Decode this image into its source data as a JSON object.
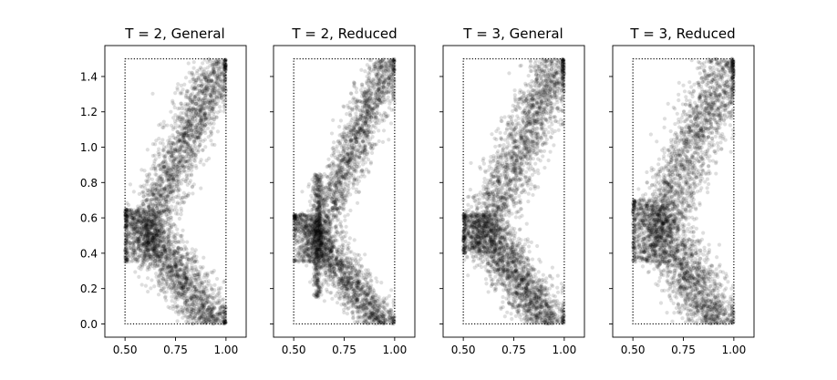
{
  "figure": {
    "background": "#ffffff",
    "point_color": "#000000",
    "point_alpha": 0.13,
    "bound_box_style": "dotted"
  },
  "chart_data": [
    {
      "type": "scatter",
      "title": "T = 2, General",
      "xlim": [
        0.4,
        1.1
      ],
      "ylim": [
        -0.075,
        1.575
      ],
      "xticks": [
        0.5,
        0.75,
        1.0
      ],
      "xtick_labels": [
        "0.50",
        "0.75",
        "1.00"
      ],
      "yticks": [
        0.0,
        0.2,
        0.4,
        0.6,
        0.8,
        1.0,
        1.2,
        1.4
      ],
      "ytick_labels": [
        "0.0",
        "0.2",
        "0.4",
        "0.6",
        "0.8",
        "1.0",
        "1.2",
        "1.4"
      ],
      "show_y_tick_labels": true,
      "bounds": {
        "x": [
          0.5,
          1.0
        ],
        "y": [
          0.0,
          1.5
        ]
      },
      "bands": [
        {
          "n": 1900,
          "y0": 0.0,
          "y1": 0.65,
          "x0": 0.93,
          "x1": 0.54,
          "width": 0.07
        },
        {
          "n": 2100,
          "y0": 0.35,
          "y1": 1.5,
          "x0": 0.54,
          "x1": 0.98,
          "width": 0.06
        }
      ],
      "approximate": true
    },
    {
      "type": "scatter",
      "title": "T = 2, Reduced",
      "xlim": [
        0.4,
        1.1
      ],
      "ylim": [
        -0.075,
        1.575
      ],
      "xticks": [
        0.5,
        0.75,
        1.0
      ],
      "xtick_labels": [
        "0.50",
        "0.75",
        "1.00"
      ],
      "yticks": [
        0.0,
        0.2,
        0.4,
        0.6,
        0.8,
        1.0,
        1.2,
        1.4
      ],
      "ytick_labels": [
        "0.0",
        "0.2",
        "0.4",
        "0.6",
        "0.8",
        "1.0",
        "1.2",
        "1.4"
      ],
      "show_y_tick_labels": false,
      "bounds": {
        "x": [
          0.5,
          1.0
        ],
        "y": [
          0.0,
          1.5
        ]
      },
      "bands": [
        {
          "n": 1700,
          "y0": 0.0,
          "y1": 0.62,
          "x0": 0.93,
          "x1": 0.53,
          "width": 0.06
        },
        {
          "n": 1900,
          "y0": 0.35,
          "y1": 1.5,
          "x0": 0.56,
          "x1": 0.98,
          "width": 0.05
        },
        {
          "n": 450,
          "y0": 0.15,
          "y1": 0.85,
          "x0": 0.62,
          "x1": 0.62,
          "width": 0.012
        }
      ],
      "approximate": true
    },
    {
      "type": "scatter",
      "title": "T = 3, General",
      "xlim": [
        0.4,
        1.1
      ],
      "ylim": [
        -0.075,
        1.575
      ],
      "xticks": [
        0.5,
        0.75,
        1.0
      ],
      "xtick_labels": [
        "0.50",
        "0.75",
        "1.00"
      ],
      "yticks": [
        0.0,
        0.2,
        0.4,
        0.6,
        0.8,
        1.0,
        1.2,
        1.4
      ],
      "ytick_labels": [
        "0.0",
        "0.2",
        "0.4",
        "0.6",
        "0.8",
        "1.0",
        "1.2",
        "1.4"
      ],
      "show_y_tick_labels": false,
      "bounds": {
        "x": [
          0.5,
          1.0
        ],
        "y": [
          0.0,
          1.5
        ]
      },
      "bands": [
        {
          "n": 1900,
          "y0": 0.0,
          "y1": 0.62,
          "x0": 0.93,
          "x1": 0.55,
          "width": 0.07
        },
        {
          "n": 2100,
          "y0": 0.4,
          "y1": 1.5,
          "x0": 0.55,
          "x1": 0.98,
          "width": 0.065
        }
      ],
      "approximate": true
    },
    {
      "type": "scatter",
      "title": "T = 3, Reduced",
      "xlim": [
        0.4,
        1.1
      ],
      "ylim": [
        -0.075,
        1.575
      ],
      "xticks": [
        0.5,
        0.75,
        1.0
      ],
      "xtick_labels": [
        "0.50",
        "0.75",
        "1.00"
      ],
      "yticks": [
        0.0,
        0.2,
        0.4,
        0.6,
        0.8,
        1.0,
        1.2,
        1.4
      ],
      "ytick_labels": [
        "0.0",
        "0.2",
        "0.4",
        "0.6",
        "0.8",
        "1.0",
        "1.2",
        "1.4"
      ],
      "show_y_tick_labels": false,
      "bounds": {
        "x": [
          0.5,
          1.0
        ],
        "y": [
          0.0,
          1.5
        ]
      },
      "bands": [
        {
          "n": 1800,
          "y0": 0.0,
          "y1": 0.7,
          "x0": 0.92,
          "x1": 0.56,
          "width": 0.075
        },
        {
          "n": 2100,
          "y0": 0.35,
          "y1": 1.5,
          "x0": 0.55,
          "x1": 0.98,
          "width": 0.07
        }
      ],
      "approximate": true
    }
  ]
}
